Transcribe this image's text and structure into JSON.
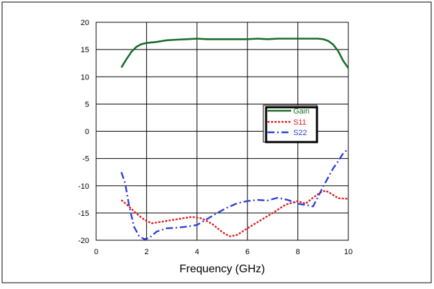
{
  "chart_data": {
    "type": "line",
    "title": "",
    "xlabel": "Frequency (GHz)",
    "ylabel": "",
    "xlim": [
      0,
      10
    ],
    "ylim": [
      -20,
      20
    ],
    "xticks": [
      "0",
      "2",
      "4",
      "6",
      "8",
      "10"
    ],
    "yticks": [
      "20",
      "15",
      "10",
      "5",
      "0",
      "-5",
      "-10",
      "-15",
      "-20"
    ],
    "grid": true,
    "legend_position": "right-center",
    "series": [
      {
        "name": "Gain",
        "color": "#1a6b2a",
        "style": "solid",
        "x": [
          1.0,
          1.2,
          1.4,
          1.6,
          1.8,
          2.0,
          2.4,
          2.8,
          3.2,
          3.6,
          4.0,
          4.4,
          4.8,
          5.2,
          5.6,
          6.0,
          6.4,
          6.8,
          7.2,
          7.6,
          8.0,
          8.4,
          8.8,
          9.0,
          9.2,
          9.4,
          9.6,
          9.8,
          10.0
        ],
        "y": [
          11.7,
          13.2,
          14.6,
          15.5,
          16.0,
          16.2,
          16.4,
          16.7,
          16.8,
          16.9,
          17.0,
          16.9,
          16.9,
          16.9,
          16.9,
          16.9,
          17.0,
          16.9,
          17.0,
          17.0,
          17.0,
          17.0,
          17.0,
          16.9,
          16.6,
          15.9,
          14.7,
          12.9,
          11.6
        ]
      },
      {
        "name": "S11",
        "color": "#e02020",
        "style": "dotted",
        "x": [
          1.0,
          1.3,
          1.6,
          1.9,
          2.2,
          2.6,
          3.0,
          3.4,
          3.8,
          4.2,
          4.6,
          5.0,
          5.3,
          5.6,
          6.0,
          6.5,
          7.0,
          7.5,
          8.0,
          8.3,
          8.6,
          8.9,
          9.1,
          9.3,
          9.6,
          10.0
        ],
        "y": [
          -12.6,
          -13.8,
          -15.1,
          -16.2,
          -16.9,
          -16.6,
          -16.3,
          -16.0,
          -15.7,
          -16.0,
          -17.0,
          -18.5,
          -19.3,
          -19.0,
          -17.8,
          -16.4,
          -15.0,
          -13.5,
          -12.8,
          -13.3,
          -12.2,
          -11.2,
          -10.9,
          -11.4,
          -12.3,
          -12.4
        ]
      },
      {
        "name": "S22",
        "color": "#2b3fd6",
        "style": "dashdot",
        "x": [
          1.0,
          1.15,
          1.3,
          1.5,
          1.7,
          1.9,
          2.1,
          2.4,
          2.8,
          3.2,
          3.6,
          4.0,
          4.4,
          4.8,
          5.2,
          5.6,
          6.0,
          6.4,
          6.8,
          7.2,
          7.6,
          8.0,
          8.4,
          8.6,
          8.8,
          9.0,
          9.2,
          9.4,
          9.6,
          9.8,
          10.0
        ],
        "y": [
          -7.5,
          -9.5,
          -13.5,
          -17.5,
          -19.2,
          -19.8,
          -19.6,
          -18.4,
          -17.8,
          -17.7,
          -17.5,
          -17.2,
          -16.1,
          -15.0,
          -14.0,
          -13.2,
          -12.8,
          -12.6,
          -12.7,
          -12.2,
          -12.6,
          -13.3,
          -13.6,
          -13.8,
          -12.0,
          -10.2,
          -8.5,
          -6.8,
          -5.5,
          -4.0,
          -3.3
        ]
      }
    ]
  }
}
